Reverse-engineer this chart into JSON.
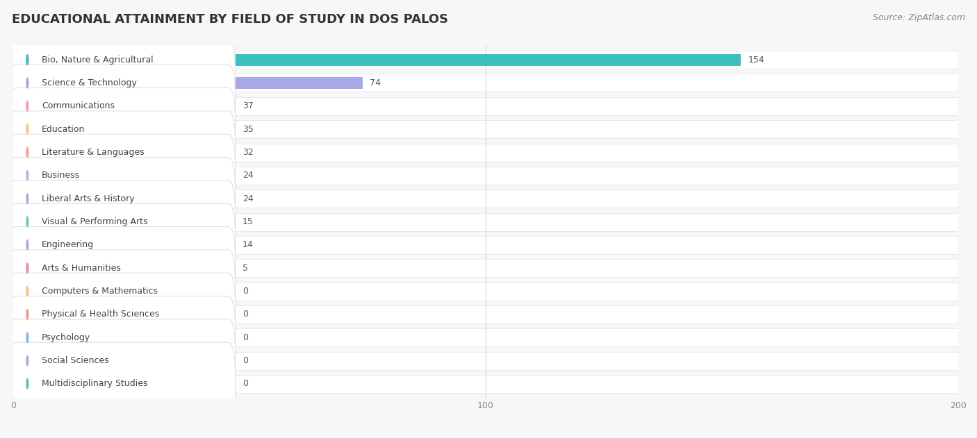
{
  "title": "EDUCATIONAL ATTAINMENT BY FIELD OF STUDY IN DOS PALOS",
  "source": "Source: ZipAtlas.com",
  "categories": [
    "Bio, Nature & Agricultural",
    "Science & Technology",
    "Communications",
    "Education",
    "Literature & Languages",
    "Business",
    "Liberal Arts & History",
    "Visual & Performing Arts",
    "Engineering",
    "Arts & Humanities",
    "Computers & Mathematics",
    "Physical & Health Sciences",
    "Psychology",
    "Social Sciences",
    "Multidisciplinary Studies"
  ],
  "values": [
    154,
    74,
    37,
    35,
    32,
    24,
    24,
    15,
    14,
    5,
    0,
    0,
    0,
    0,
    0
  ],
  "bar_colors": [
    "#3bbfbf",
    "#a8a8e8",
    "#f4a0b8",
    "#f5c880",
    "#f0a898",
    "#a8c0e8",
    "#c0a8d8",
    "#6ecece",
    "#b0b0e8",
    "#f090a8",
    "#f5c888",
    "#f0a090",
    "#90b8f0",
    "#c8a8d8",
    "#5ec8c8"
  ],
  "xlim": [
    0,
    200
  ],
  "xticks": [
    0,
    100,
    200
  ],
  "background_color": "#f7f7f7",
  "row_bg_color": "#ffffff",
  "sep_color": "#e0e0e0",
  "title_fontsize": 13,
  "source_fontsize": 9,
  "label_fontsize": 9,
  "value_fontsize": 9,
  "bar_height": 0.68
}
